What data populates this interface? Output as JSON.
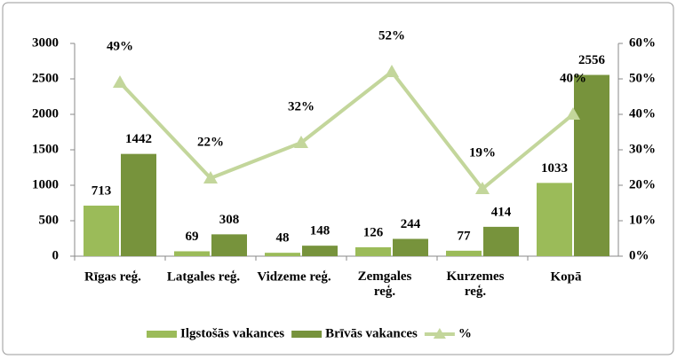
{
  "chart_data": {
    "type": "bar_line",
    "categories": [
      "Rīgas reģ.",
      "Latgales reģ.",
      "Vidzeme reģ.",
      "Zemgales reģ.",
      "Kurzemes reģ.",
      "Kopā"
    ],
    "series": [
      {
        "name": "Ilgstošās vakances",
        "color": "#9bbb59",
        "type": "bar",
        "values": [
          713,
          69,
          48,
          126,
          77,
          1033
        ]
      },
      {
        "name": "Brīvās vakances",
        "color": "#77933c",
        "type": "bar",
        "values": [
          1442,
          308,
          148,
          244,
          414,
          2556
        ]
      },
      {
        "name": "%",
        "color": "#c3d69b",
        "type": "line",
        "axis": "y2",
        "values": [
          49,
          22,
          32,
          52,
          19,
          40
        ],
        "value_labels": [
          "49%",
          "22%",
          "32%",
          "52%",
          "19%",
          "40%"
        ]
      }
    ],
    "ylim": [
      0,
      3000
    ],
    "yticks": [
      0,
      500,
      1000,
      1500,
      2000,
      2500,
      3000
    ],
    "y2lim": [
      0,
      60
    ],
    "y2ticks": [
      {
        "value": 0,
        "label": "0%"
      },
      {
        "value": 10,
        "label": "10%"
      },
      {
        "value": 20,
        "label": "20%"
      },
      {
        "value": 30,
        "label": "30%"
      },
      {
        "value": 40,
        "label": "40%"
      },
      {
        "value": 50,
        "label": "50%"
      },
      {
        "value": 60,
        "label": "60%"
      }
    ],
    "legend": "bottom",
    "grid": false
  }
}
